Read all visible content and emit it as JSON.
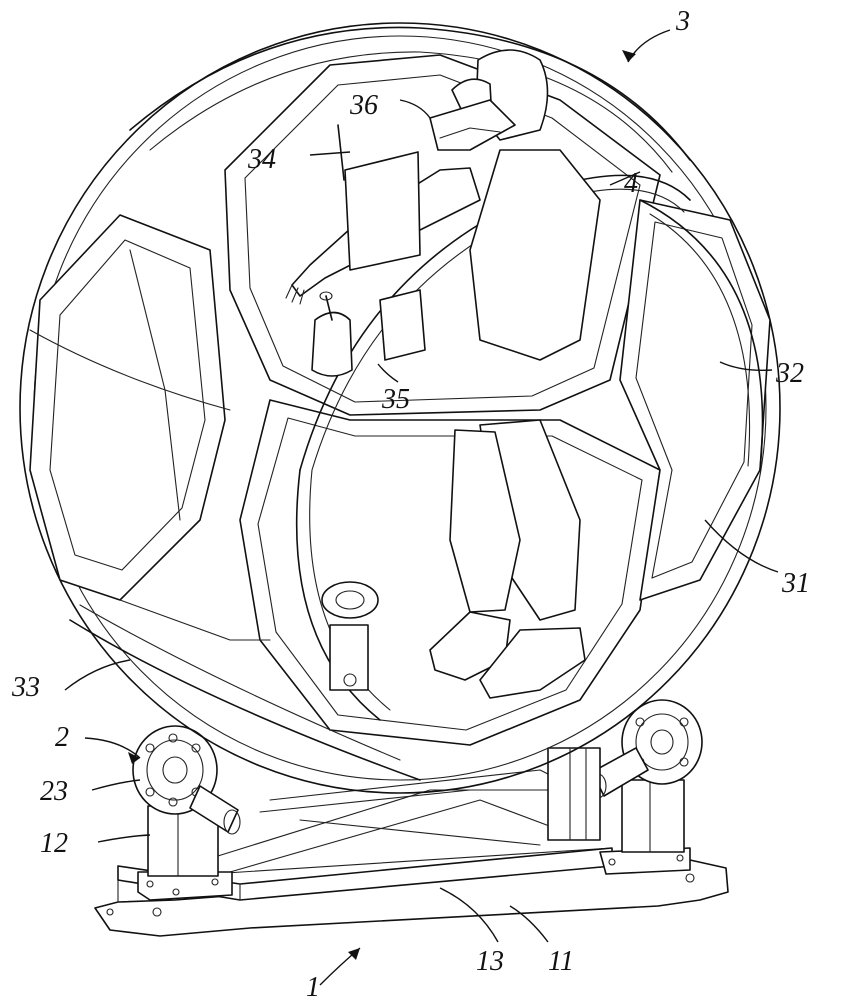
{
  "labels": {
    "l1": "1",
    "l2": "2",
    "l3": "3",
    "l4": "4",
    "l11": "11",
    "l12": "12",
    "l13": "13",
    "l23": "23",
    "l31": "31",
    "l32": "32",
    "l33": "33",
    "l34": "34",
    "l35": "35",
    "l36": "36"
  }
}
